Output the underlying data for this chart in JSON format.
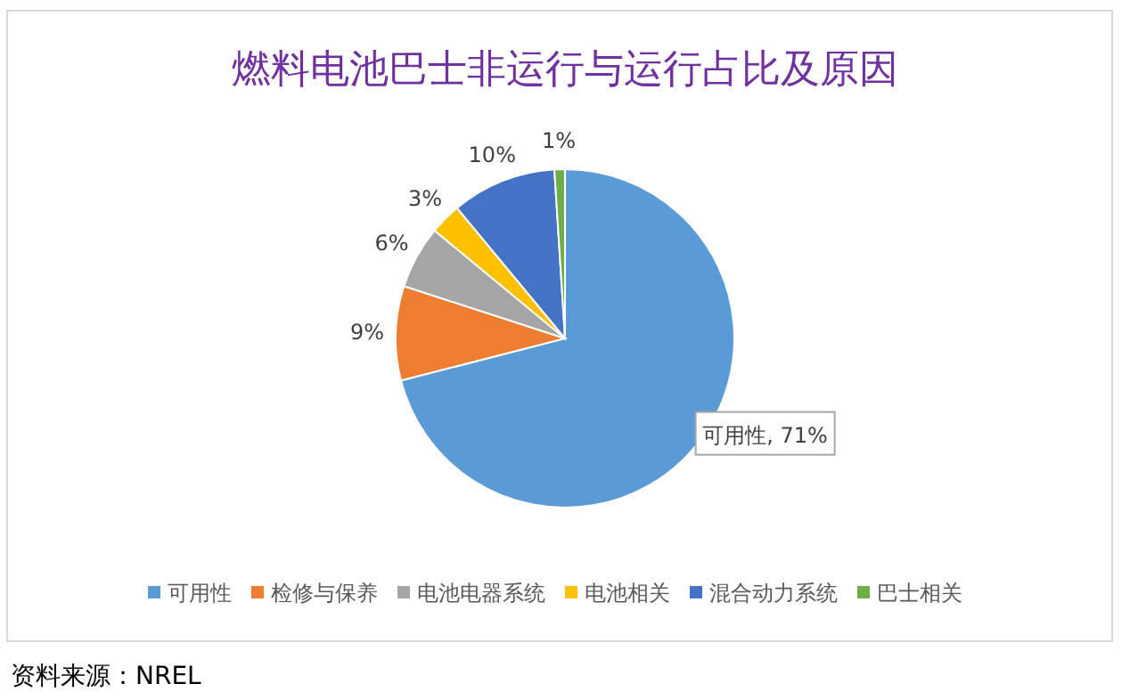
{
  "chart_data": {
    "type": "pie",
    "title": "燃料电池巴士非运行与运行占比及原因",
    "categories": [
      "可用性",
      "检修与保养",
      "电池电器系统",
      "电池相关",
      "混合动力系统",
      "巴士相关"
    ],
    "values": [
      71,
      9,
      6,
      3,
      10,
      1
    ],
    "colors": [
      "#5b9bd5",
      "#ed7d31",
      "#a5a5a5",
      "#ffc000",
      "#4472c4",
      "#70ad47"
    ],
    "value_labels": [
      "可用性, 71%",
      "9%",
      "6%",
      "3%",
      "10%",
      "1%"
    ],
    "legend": "bottom",
    "annotations": [
      "资料来源：NREL"
    ]
  }
}
